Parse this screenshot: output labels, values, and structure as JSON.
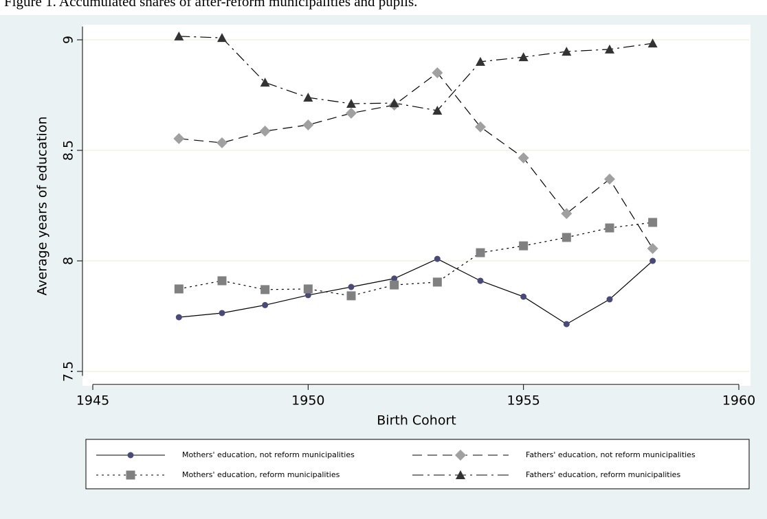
{
  "caption": "Figure 1. Accumulated shares of after-reform municipalities and pupils.",
  "chart_data": {
    "type": "line",
    "x_label": "Birth Cohort",
    "y_label": "Average years of education",
    "x": [
      1947,
      1948,
      1949,
      1950,
      1951,
      1952,
      1953,
      1954,
      1955,
      1956,
      1957,
      1958
    ],
    "series": [
      {
        "name": "Mothers' education, not reform municipalities",
        "color": "#4a4a78",
        "marker": "circle",
        "line_style": "solid",
        "values": [
          7.745,
          7.764,
          7.8,
          7.845,
          7.882,
          7.92,
          8.009,
          7.91,
          7.838,
          7.714,
          7.826,
          8.0
        ]
      },
      {
        "name": "Fathers' education, not reform municipalities",
        "color": "#a0a0a0",
        "marker": "diamond",
        "line_style": "dashed",
        "values": [
          8.553,
          8.534,
          8.587,
          8.615,
          8.668,
          8.705,
          8.851,
          8.606,
          8.466,
          8.214,
          8.37,
          8.056
        ]
      },
      {
        "name": "Mothers' education, reform municipalities",
        "color": "#808080",
        "marker": "square",
        "line_style": "dotted",
        "values": [
          7.873,
          7.91,
          7.87,
          7.873,
          7.842,
          7.891,
          7.904,
          8.037,
          8.068,
          8.106,
          8.149,
          8.174
        ]
      },
      {
        "name": "Fathers' education, reform municipalities",
        "color": "#333333",
        "marker": "triangle",
        "line_style": "dashdot",
        "values": [
          9.016,
          9.009,
          8.807,
          8.739,
          8.711,
          8.714,
          8.68,
          8.901,
          8.922,
          8.947,
          8.957,
          8.984
        ]
      }
    ],
    "line_color": "#000000",
    "xlim": [
      1945,
      1960
    ],
    "xticks": [
      1945,
      1950,
      1955,
      1960
    ],
    "ylim": [
      7.48,
      9.06
    ],
    "yticks": [
      7.5,
      8,
      8.5,
      9
    ],
    "grid": true
  }
}
